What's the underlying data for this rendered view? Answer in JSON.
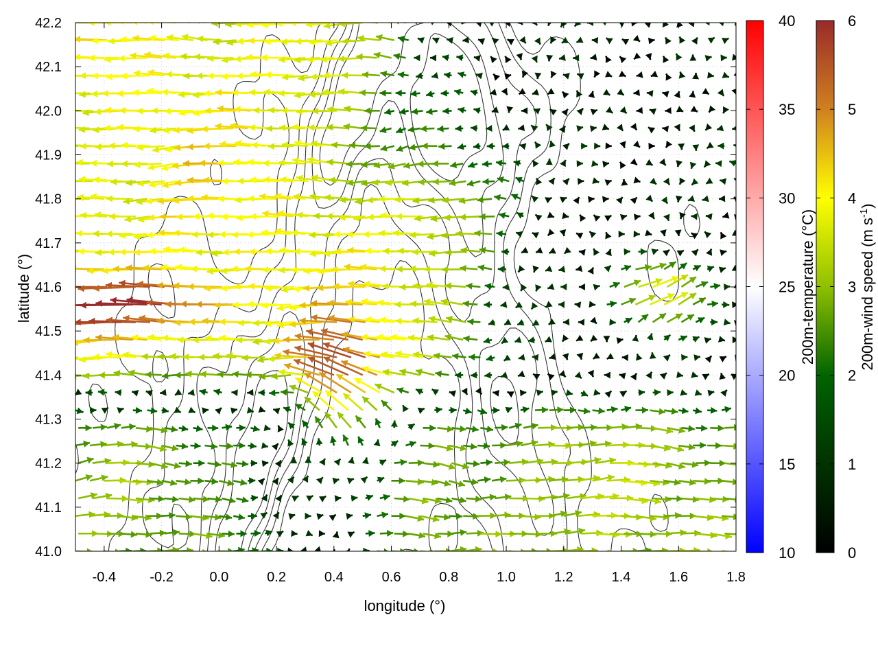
{
  "chart_data": {
    "type": "quiver",
    "xlabel": "longitude (°)",
    "ylabel": "latitude (°)",
    "xlim": [
      -0.5,
      1.8
    ],
    "ylim": [
      41.0,
      42.2
    ],
    "x_ticks": [
      "-0.4",
      "-0.2",
      "0.0",
      "0.2",
      "0.4",
      "0.6",
      "0.8",
      "1.0",
      "1.2",
      "1.4",
      "1.6",
      "1.8"
    ],
    "x_tick_values": [
      -0.4,
      -0.2,
      0.0,
      0.2,
      0.4,
      0.6,
      0.8,
      1.0,
      1.2,
      1.4,
      1.6,
      1.8
    ],
    "y_ticks": [
      "41.0",
      "41.1",
      "41.2",
      "41.3",
      "41.4",
      "41.5",
      "41.6",
      "41.7",
      "41.8",
      "41.9",
      "42.0",
      "42.1",
      "42.2"
    ],
    "y_tick_values": [
      41.0,
      41.1,
      41.2,
      41.3,
      41.4,
      41.5,
      41.6,
      41.7,
      41.8,
      41.9,
      42.0,
      42.1,
      42.2
    ],
    "grid": true,
    "temperature_colorbar": {
      "label": "200m-temperature (°C)",
      "range": [
        10,
        40
      ],
      "ticks": [
        "10",
        "15",
        "20",
        "25",
        "30",
        "35",
        "40"
      ],
      "tick_values": [
        10,
        15,
        20,
        25,
        30,
        35,
        40
      ],
      "colors": [
        "#0000ff",
        "#ffffff",
        "#ff0000"
      ]
    },
    "wind_colorbar": {
      "label_main": "200m-wind speed (m s",
      "label_sup": "-1",
      "label_end": ")",
      "range": [
        0,
        6
      ],
      "ticks": [
        "0",
        "1",
        "2",
        "3",
        "4",
        "5",
        "6"
      ],
      "tick_values": [
        0,
        1,
        2,
        3,
        4,
        5,
        6
      ],
      "colors": [
        "#000000",
        "#006400",
        "#90c000",
        "#ffff00",
        "#d08020",
        "#9a2a2a"
      ]
    },
    "wind_field": {
      "lon_start": -0.5,
      "lon_step": 0.05,
      "n_lon": 47,
      "lat_start": 41.0,
      "lat_step": 0.04,
      "n_lat": 31,
      "regimes": [
        {
          "region": "west, lat 41.35–42.2",
          "direction": "westward",
          "speed": "2–6"
        },
        {
          "region": "west, lat 41.45–41.65",
          "direction": "westward",
          "speed": "5–6"
        },
        {
          "region": "east, lat 41.0–41.35",
          "direction": "eastward",
          "speed": "1–3"
        },
        {
          "region": "center 0.3–0.7, lat 41.15–41.5",
          "direction": "north-westward",
          "speed": "3–6"
        },
        {
          "region": "north-east, lat 41.85–42.2",
          "direction": "variable",
          "speed": "0–2"
        },
        {
          "region": "east 1.3–1.7, lat 41.45–41.7",
          "direction": "north-eastward",
          "speed": "3–5"
        }
      ]
    },
    "contour_color": "#333333"
  }
}
